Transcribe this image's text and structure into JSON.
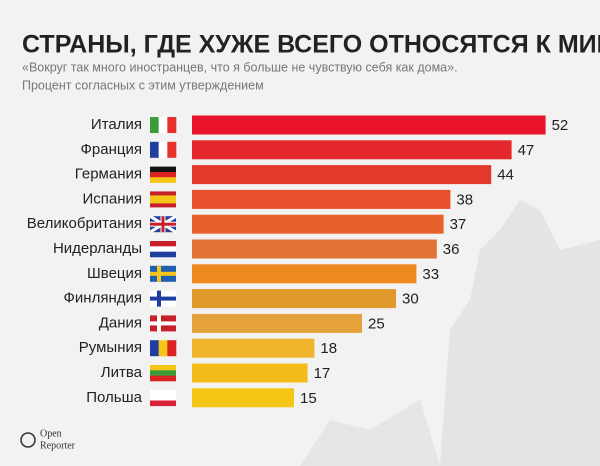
{
  "chart_data": {
    "type": "hbar",
    "title": "СТРАНЫ, ГДЕ ХУЖЕ ВСЕГО ОТНОСЯТСЯ К МИГРАНТАМ",
    "subtitle": [
      "«Вокруг так много иностранцев, что я больше не чувствую себя как дома».",
      "Процент согласных с этим утверждением"
    ],
    "categories": [
      "Италия",
      "Франция",
      "Германия",
      "Испания",
      "Великобритания",
      "Нидерланды",
      "Швеция",
      "Финляндия",
      "Дания",
      "Румыния",
      "Литва",
      "Польша"
    ],
    "values": [
      52,
      47,
      44,
      38,
      37,
      36,
      33,
      30,
      25,
      18,
      17,
      15
    ],
    "colors": [
      "#e8132b",
      "#e5282b",
      "#e2392b",
      "#e84f2c",
      "#e8612a",
      "#e27236",
      "#ec8a1f",
      "#e09a2c",
      "#e5a23a",
      "#f0b52c",
      "#f4bc1a",
      "#f6c617"
    ]
  },
  "brand": [
    "Open",
    "Reporter"
  ]
}
